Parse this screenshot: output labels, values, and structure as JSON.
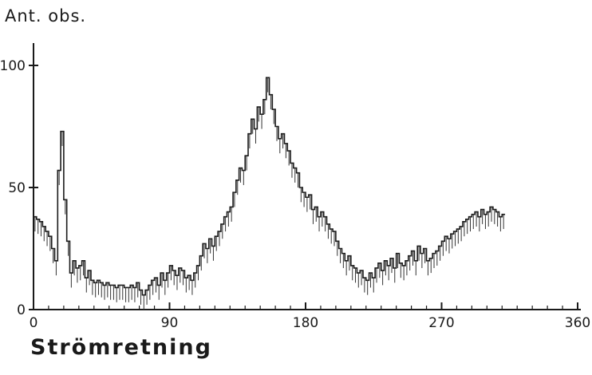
{
  "chart_data": {
    "type": "step-histogram",
    "xlabel": "Strömretning",
    "ylabel": "Ant. obs.",
    "xlim": [
      0,
      360
    ],
    "ylim": [
      0,
      100
    ],
    "x_ticks": [
      "0",
      "90",
      "180",
      "270",
      "360"
    ],
    "y_ticks": [
      "0",
      "50",
      "100"
    ],
    "grid": false,
    "bin_width_deg": 2,
    "values": [
      38,
      37,
      36,
      34,
      32,
      30,
      25,
      20,
      57,
      73,
      45,
      28,
      15,
      20,
      17,
      18,
      20,
      13,
      16,
      12,
      11,
      12,
      11,
      10,
      11,
      10,
      10,
      9,
      10,
      10,
      9,
      9,
      10,
      9,
      11,
      8,
      6,
      8,
      10,
      12,
      13,
      10,
      15,
      12,
      15,
      18,
      16,
      14,
      17,
      16,
      13,
      14,
      12,
      15,
      18,
      22,
      27,
      25,
      29,
      26,
      30,
      32,
      35,
      38,
      40,
      42,
      48,
      53,
      58,
      57,
      63,
      72,
      78,
      74,
      83,
      80,
      86,
      95,
      88,
      82,
      75,
      70,
      72,
      68,
      65,
      60,
      58,
      56,
      50,
      48,
      46,
      47,
      41,
      42,
      38,
      40,
      38,
      35,
      33,
      32,
      28,
      25,
      23,
      20,
      22,
      18,
      17,
      15,
      16,
      13,
      12,
      15,
      13,
      17,
      19,
      16,
      20,
      18,
      21,
      17,
      23,
      19,
      18,
      20,
      22,
      24,
      20,
      26,
      23,
      25,
      20,
      21,
      23,
      24,
      26,
      28,
      30,
      29,
      31,
      32,
      33,
      34,
      36,
      37,
      38,
      39,
      40,
      38,
      41,
      39,
      40,
      42,
      41,
      40,
      38,
      39
    ]
  }
}
